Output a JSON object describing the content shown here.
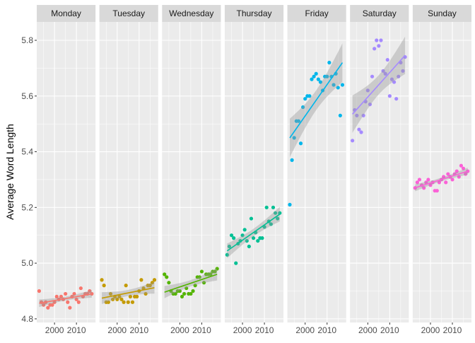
{
  "chart_data": {
    "type": "scatter",
    "facet_by": "day",
    "ylabel": "Average Word Length",
    "xlabel": "",
    "ylim": [
      4.787,
      5.866
    ],
    "xlim": [
      1991.9,
      2018.7
    ],
    "y_ticks": [
      "4.8",
      "5.0",
      "5.2",
      "5.4",
      "5.6",
      "5.8"
    ],
    "x_ticks": [
      "2000",
      "2010"
    ],
    "grid": true,
    "trend": "linear fit with 95% confidence band",
    "years": [
      1993,
      1994,
      1995,
      1996,
      1997,
      1998,
      1999,
      2000,
      2001,
      2002,
      2003,
      2004,
      2005,
      2006,
      2007,
      2008,
      2009,
      2010,
      2011,
      2012,
      2013,
      2014,
      2015,
      2016,
      2017
    ],
    "panels": [
      {
        "name": "Monday",
        "color": "#F8766D",
        "values": [
          4.9,
          4.86,
          4.85,
          4.86,
          4.84,
          4.85,
          4.85,
          4.86,
          4.88,
          4.87,
          4.88,
          4.87,
          4.89,
          4.86,
          4.84,
          4.88,
          4.89,
          4.87,
          4.86,
          4.91,
          4.88,
          4.89,
          4.89,
          4.9,
          4.89
        ]
      },
      {
        "name": "Tuesday",
        "color": "#C49A00",
        "values": [
          4.94,
          4.92,
          4.86,
          4.86,
          4.89,
          4.87,
          4.88,
          4.87,
          4.88,
          4.87,
          4.86,
          4.92,
          4.86,
          4.88,
          4.86,
          4.88,
          4.88,
          4.9,
          4.94,
          4.91,
          4.89,
          4.92,
          4.92,
          4.93,
          4.94
        ]
      },
      {
        "name": "Wednesday",
        "color": "#53B400",
        "values": [
          4.96,
          4.95,
          4.93,
          4.9,
          4.89,
          4.89,
          4.9,
          4.9,
          4.88,
          4.89,
          4.91,
          4.89,
          4.89,
          4.9,
          4.92,
          4.95,
          4.95,
          4.97,
          4.93,
          4.96,
          4.96,
          4.96,
          4.97,
          4.97,
          4.98
        ]
      },
      {
        "name": "Thursday",
        "color": "#00C094",
        "values": [
          5.03,
          5.06,
          5.1,
          5.09,
          5.0,
          5.07,
          5.08,
          5.1,
          5.12,
          5.08,
          5.06,
          5.16,
          5.09,
          5.11,
          5.08,
          5.09,
          5.09,
          5.13,
          5.2,
          5.15,
          5.14,
          5.2,
          5.18,
          5.16,
          5.18
        ]
      },
      {
        "name": "Friday",
        "color": "#00B6EB",
        "values": [
          5.21,
          5.37,
          5.45,
          5.51,
          5.51,
          5.43,
          5.56,
          5.59,
          5.6,
          5.6,
          5.66,
          5.67,
          5.68,
          5.66,
          5.65,
          5.62,
          5.67,
          5.67,
          5.72,
          5.67,
          5.64,
          5.68,
          5.63,
          5.53,
          5.64
        ]
      },
      {
        "name": "Saturday",
        "color": "#A58AFF",
        "values": [
          5.44,
          5.55,
          5.53,
          5.48,
          5.47,
          5.53,
          5.58,
          5.62,
          5.57,
          5.67,
          5.77,
          5.8,
          5.78,
          5.8,
          5.69,
          5.68,
          5.73,
          5.6,
          5.66,
          5.65,
          5.59,
          5.67,
          5.72,
          5.69,
          5.74
        ]
      },
      {
        "name": "Sunday",
        "color": "#FB61D7",
        "values": [
          5.27,
          5.29,
          5.3,
          5.28,
          5.27,
          5.29,
          5.3,
          5.28,
          5.29,
          5.26,
          5.26,
          5.29,
          5.3,
          5.31,
          5.29,
          5.32,
          5.31,
          5.3,
          5.32,
          5.33,
          5.31,
          5.35,
          5.34,
          5.32,
          5.33
        ]
      }
    ]
  }
}
